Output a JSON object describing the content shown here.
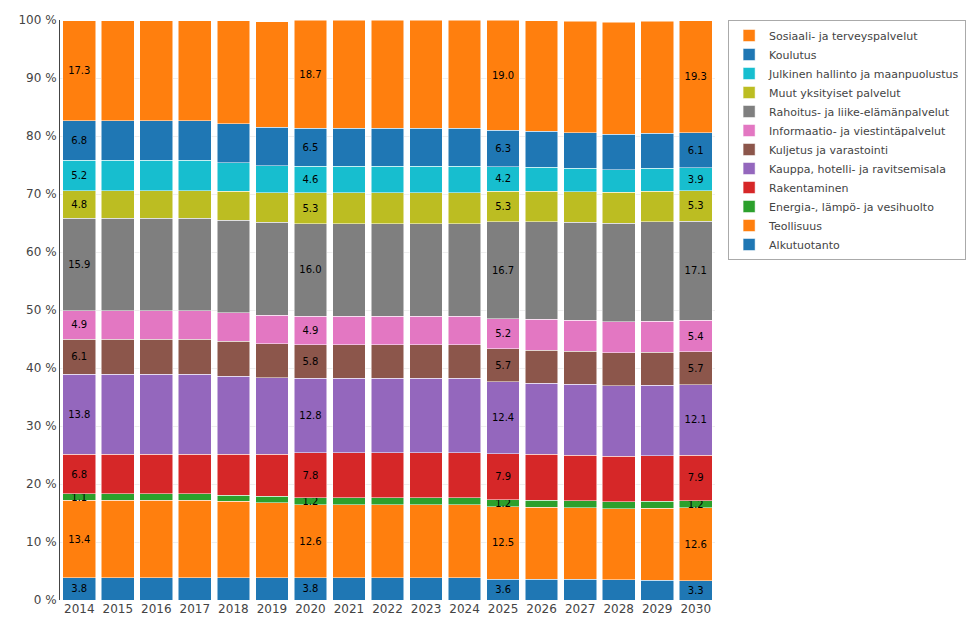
{
  "chart_data": {
    "type": "bar",
    "stacked": true,
    "categories": [
      "2014",
      "2015",
      "2016",
      "2017",
      "2018",
      "2019",
      "2020",
      "2021",
      "2022",
      "2023",
      "2024",
      "2025",
      "2026",
      "2027",
      "2028",
      "2029",
      "2030"
    ],
    "series": [
      {
        "name": "Alkutuotanto",
        "values": [
          3.8,
          3.8,
          3.8,
          3.8,
          3.8,
          3.8,
          3.8,
          3.8,
          3.8,
          3.8,
          3.8,
          3.6,
          3.6,
          3.6,
          3.5,
          3.4,
          3.3
        ],
        "value_labels": [
          "3.8",
          null,
          null,
          null,
          null,
          null,
          "3.8",
          null,
          null,
          null,
          null,
          "3.6",
          null,
          null,
          null,
          null,
          "3.3"
        ]
      },
      {
        "name": "Teollisuus",
        "values": [
          13.4,
          13.4,
          13.4,
          13.4,
          13.2,
          13.0,
          12.6,
          12.6,
          12.6,
          12.6,
          12.6,
          12.5,
          12.4,
          12.3,
          12.2,
          12.4,
          12.6
        ],
        "value_labels": [
          "13.4",
          null,
          null,
          null,
          null,
          null,
          "12.6",
          null,
          null,
          null,
          null,
          "12.5",
          null,
          null,
          null,
          null,
          "12.6"
        ]
      },
      {
        "name": "Energia-, lämpö- ja vesihuolto",
        "values": [
          1.1,
          1.1,
          1.1,
          1.1,
          1.1,
          1.1,
          1.2,
          1.2,
          1.2,
          1.2,
          1.2,
          1.2,
          1.2,
          1.2,
          1.2,
          1.2,
          1.2
        ],
        "value_labels": [
          "1.1",
          null,
          null,
          null,
          null,
          null,
          "1.2",
          null,
          null,
          null,
          null,
          "1.2",
          null,
          null,
          null,
          null,
          "1.2"
        ]
      },
      {
        "name": "Rakentaminen",
        "values": [
          6.8,
          6.8,
          6.8,
          6.8,
          7.0,
          7.2,
          7.8,
          7.8,
          7.8,
          7.8,
          7.8,
          7.9,
          7.9,
          7.9,
          7.9,
          7.9,
          7.9
        ],
        "value_labels": [
          "6.8",
          null,
          null,
          null,
          null,
          null,
          "7.8",
          null,
          null,
          null,
          null,
          "7.9",
          null,
          null,
          null,
          null,
          "7.9"
        ]
      },
      {
        "name": "Kauppa, hotelli- ja ravitsemisala",
        "values": [
          13.8,
          13.8,
          13.8,
          13.8,
          13.5,
          13.2,
          12.8,
          12.8,
          12.8,
          12.8,
          12.8,
          12.4,
          12.3,
          12.2,
          12.1,
          12.1,
          12.1
        ],
        "value_labels": [
          "13.8",
          null,
          null,
          null,
          null,
          null,
          "12.8",
          null,
          null,
          null,
          null,
          "12.4",
          null,
          null,
          null,
          null,
          "12.1"
        ]
      },
      {
        "name": "Kuljetus ja varastointi",
        "values": [
          6.1,
          6.1,
          6.1,
          6.1,
          6.0,
          5.9,
          5.8,
          5.8,
          5.8,
          5.8,
          5.8,
          5.7,
          5.7,
          5.7,
          5.7,
          5.7,
          5.7
        ],
        "value_labels": [
          "6.1",
          null,
          null,
          null,
          null,
          null,
          "5.8",
          null,
          null,
          null,
          null,
          "5.7",
          null,
          null,
          null,
          null,
          "5.7"
        ]
      },
      {
        "name": "Informaatio- ja viestintäpalvelut",
        "values": [
          4.9,
          4.9,
          4.9,
          4.9,
          4.9,
          4.9,
          4.9,
          4.9,
          4.9,
          4.9,
          4.9,
          5.2,
          5.3,
          5.3,
          5.4,
          5.4,
          5.4
        ],
        "value_labels": [
          "4.9",
          null,
          null,
          null,
          null,
          null,
          "4.9",
          null,
          null,
          null,
          null,
          "5.2",
          null,
          null,
          null,
          null,
          "5.4"
        ]
      },
      {
        "name": "Rahoitus- ja liike-elämänpalvelut",
        "values": [
          15.9,
          15.9,
          15.9,
          15.9,
          16.0,
          16.0,
          16.0,
          16.0,
          16.0,
          16.0,
          16.0,
          16.7,
          16.8,
          16.9,
          17.0,
          17.1,
          17.1
        ],
        "value_labels": [
          "15.9",
          null,
          null,
          null,
          null,
          null,
          "16.0",
          null,
          null,
          null,
          null,
          "16.7",
          null,
          null,
          null,
          null,
          "17.1"
        ]
      },
      {
        "name": "Muut yksityiset palvelut",
        "values": [
          4.8,
          4.8,
          4.8,
          4.8,
          5.0,
          5.1,
          5.3,
          5.3,
          5.3,
          5.3,
          5.3,
          5.3,
          5.3,
          5.3,
          5.3,
          5.3,
          5.3
        ],
        "value_labels": [
          "4.8",
          null,
          null,
          null,
          null,
          null,
          "5.3",
          null,
          null,
          null,
          null,
          "5.3",
          null,
          null,
          null,
          null,
          "5.3"
        ]
      },
      {
        "name": "Julkinen hallinto ja maanpuolustus",
        "values": [
          5.2,
          5.2,
          5.2,
          5.2,
          4.9,
          4.7,
          4.6,
          4.6,
          4.6,
          4.6,
          4.6,
          4.2,
          4.1,
          4.0,
          3.9,
          3.9,
          3.9
        ],
        "value_labels": [
          "5.2",
          null,
          null,
          null,
          null,
          null,
          "4.6",
          null,
          null,
          null,
          null,
          "4.2",
          null,
          null,
          null,
          null,
          "3.9"
        ]
      },
      {
        "name": "Koulutus",
        "values": [
          6.8,
          6.8,
          6.8,
          6.8,
          6.7,
          6.6,
          6.5,
          6.5,
          6.5,
          6.5,
          6.5,
          6.3,
          6.2,
          6.2,
          6.1,
          6.1,
          6.1
        ],
        "value_labels": [
          "6.8",
          null,
          null,
          null,
          null,
          null,
          "6.5",
          null,
          null,
          null,
          null,
          "6.3",
          null,
          null,
          null,
          null,
          "6.1"
        ]
      },
      {
        "name": "Sosiaali- ja terveyspalvelut",
        "values": [
          17.3,
          17.3,
          17.3,
          17.3,
          17.8,
          18.2,
          18.7,
          18.7,
          18.7,
          18.7,
          18.7,
          19.0,
          19.1,
          19.2,
          19.3,
          19.3,
          19.3
        ],
        "value_labels": [
          "17.3",
          null,
          null,
          null,
          null,
          null,
          "18.7",
          null,
          null,
          null,
          null,
          "19.0",
          null,
          null,
          null,
          null,
          "19.3"
        ]
      }
    ],
    "ylim": [
      0,
      100
    ],
    "yticks": [
      {
        "value": 0,
        "label": "0 %"
      },
      {
        "value": 10,
        "label": "10 %"
      },
      {
        "value": 20,
        "label": "20 %"
      },
      {
        "value": 30,
        "label": "30 %"
      },
      {
        "value": 40,
        "label": "40 %"
      },
      {
        "value": 50,
        "label": "50 %"
      },
      {
        "value": 60,
        "label": "60 %"
      },
      {
        "value": 70,
        "label": "70 %"
      },
      {
        "value": 80,
        "label": "80 %"
      },
      {
        "value": 90,
        "label": "90 %"
      },
      {
        "value": 100,
        "label": "100 %"
      }
    ],
    "data_labels": true,
    "grid": true,
    "legend": "upper right"
  }
}
